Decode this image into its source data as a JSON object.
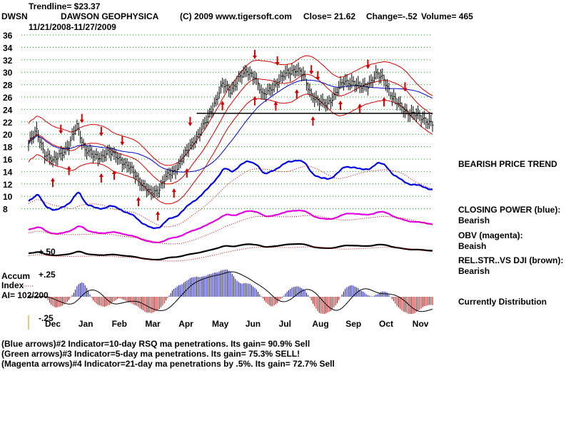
{
  "header": {
    "trendline": "Trendline= $23.37",
    "symbol": "DWSN",
    "company": "DAWSON GEOPHYSICA",
    "copyright": "(C) 2009 www.tigersoft.com",
    "close": "Close=  21.62",
    "change": "Change=-.52",
    "volume": "Volume= 465",
    "date_range": "11/21/2008-11/27/2009"
  },
  "left_labels": {
    "plus50": "+.50",
    "plus25": "+.25",
    "minus25": "-.25",
    "accum": "Accum",
    "index": "Index",
    "ai": "AI= 102/200"
  },
  "right_panel": {
    "trend": "BEARISH PRICE TREND",
    "cp_label": "CLOSING POWER (blue):",
    "cp_value": "Bearish",
    "obv_label": "OBV (magenta):",
    "obv_value": "Beaish",
    "rs_label": "REL.STR..VS DJI (brown):",
    "rs_value": "Bearish",
    "distribution": "Currently Distribution"
  },
  "footer": {
    "line1": "(Blue arrows)#2 Indicator=10-day RSQ ma penetrations. Its gain= 90.9% Sell",
    "line2": "(Green arrows)#3 Indicator=5-day ma penetrations. Its gain= 75.3% SELL!",
    "line3": "(Magenta arrows)#4 Indicator=21-day ma penetrations by .5%. Its gain= 72.7% Sell"
  },
  "colors": {
    "price": "#000000",
    "bands": "#d00000",
    "ma": "#0000c8",
    "closing_power": "#0000e0",
    "obv": "#e000e0",
    "rel_strength": "#000000",
    "ma_dotted": "#d00000",
    "accum_pos": "#0000c8",
    "accum_neg": "#c00000",
    "grid": "#00a000",
    "arrows": "#d00000"
  },
  "chart_data": {
    "type": "line",
    "title": "DAWSON GEOPHYSICA",
    "xlabel": "",
    "ylabel": "",
    "ylim": [
      6,
      37
    ],
    "y_ticks": [
      36,
      34,
      32,
      30,
      28,
      26,
      24,
      22,
      20,
      18,
      16,
      14,
      12,
      10,
      8
    ],
    "months": [
      "Dec",
      "Jan",
      "Feb",
      "Mar",
      "Apr",
      "May",
      "Jun",
      "Jul",
      "Aug",
      "Sep",
      "Oct",
      "Nov"
    ],
    "trendline_level": 23.37,
    "price_series": {
      "name": "",
      "t": [
        0,
        5,
        10,
        15,
        20,
        25,
        30,
        35,
        40,
        45,
        50,
        55,
        60,
        65,
        70,
        75,
        80,
        85,
        90,
        95,
        100,
        105,
        110,
        115,
        120,
        125,
        130,
        135,
        140,
        145,
        150,
        155,
        160,
        165,
        170,
        175,
        180,
        185,
        190,
        195,
        200,
        205,
        210,
        215,
        220,
        225,
        230,
        235,
        240,
        245,
        250
      ],
      "values": [
        18.5,
        20.5,
        17,
        15.5,
        17,
        18,
        21.5,
        17.5,
        16.5,
        16.5,
        17,
        16.5,
        15,
        14,
        12,
        10.5,
        11,
        13,
        14,
        16,
        18,
        20,
        22,
        25,
        28,
        27,
        29,
        30,
        29.5,
        26,
        27.5,
        28.5,
        30,
        30.5,
        29.5,
        26.5,
        25,
        25,
        26.5,
        28.5,
        28.5,
        27.5,
        28,
        29.5,
        29,
        26,
        24.5,
        23.5,
        23,
        22.5,
        21.62
      ]
    },
    "indicators": [
      {
        "name": "CLOSING POWER (blue)",
        "status": "Bearish"
      },
      {
        "name": "OBV (magenta)",
        "status": "Beaish"
      },
      {
        "name": "REL.STR..VS DJI (brown)",
        "status": "Bearish"
      }
    ],
    "accumulation_index": {
      "name": "Accum Index",
      "levels": [
        0.5,
        0.25,
        -0.25
      ],
      "ai": "102/200"
    }
  }
}
